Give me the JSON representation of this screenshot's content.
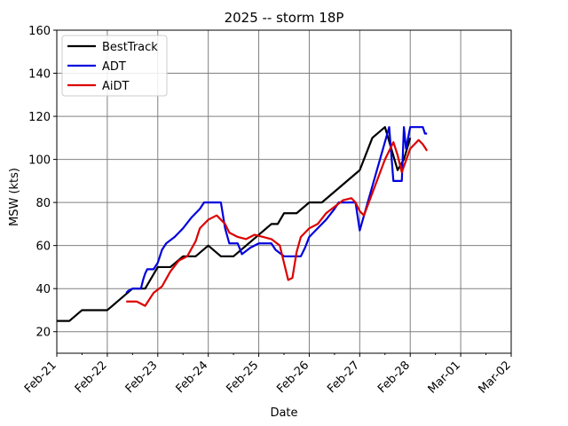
{
  "chart_data": {
    "type": "line",
    "title": "2025 -- storm 18P",
    "xlabel": "Date",
    "ylabel": "MSW (kts)",
    "xlim": [
      "2025-02-21",
      "2025-03-02"
    ],
    "ylim": [
      10,
      160
    ],
    "x_ticks": [
      "2025-02-21",
      "2025-02-22",
      "2025-02-23",
      "2025-02-24",
      "2025-02-25",
      "2025-02-26",
      "2025-02-27",
      "2025-02-28",
      "2025-03-01",
      "2025-03-02"
    ],
    "x_tick_labels": [
      "Feb-21",
      "Feb-22",
      "Feb-23",
      "Feb-24",
      "Feb-25",
      "Feb-26",
      "Feb-27",
      "Feb-28",
      "Mar-01",
      "Mar-02"
    ],
    "y_ticks": [
      20,
      40,
      60,
      80,
      100,
      120,
      140,
      160
    ],
    "grid": true,
    "legend_position": "top-left",
    "series": [
      {
        "name": "BestTrack",
        "color": "#000000",
        "points": [
          [
            "2025-02-21T00:00",
            25
          ],
          [
            "2025-02-21T06:00",
            25
          ],
          [
            "2025-02-21T12:00",
            30
          ],
          [
            "2025-02-21T18:00",
            30
          ],
          [
            "2025-02-22T00:00",
            30
          ],
          [
            "2025-02-22T06:00",
            35
          ],
          [
            "2025-02-22T12:00",
            40
          ],
          [
            "2025-02-22T18:00",
            40
          ],
          [
            "2025-02-23T00:00",
            50
          ],
          [
            "2025-02-23T06:00",
            50
          ],
          [
            "2025-02-23T12:00",
            55
          ],
          [
            "2025-02-23T18:00",
            55
          ],
          [
            "2025-02-24T00:00",
            60
          ],
          [
            "2025-02-24T06:00",
            55
          ],
          [
            "2025-02-24T12:00",
            55
          ],
          [
            "2025-02-24T18:00",
            60
          ],
          [
            "2025-02-25T00:00",
            65
          ],
          [
            "2025-02-25T06:00",
            70
          ],
          [
            "2025-02-25T09:00",
            70
          ],
          [
            "2025-02-25T12:00",
            75
          ],
          [
            "2025-02-25T18:00",
            75
          ],
          [
            "2025-02-26T00:00",
            80
          ],
          [
            "2025-02-26T06:00",
            80
          ],
          [
            "2025-02-26T12:00",
            85
          ],
          [
            "2025-02-26T18:00",
            90
          ],
          [
            "2025-02-27T00:00",
            95
          ],
          [
            "2025-02-27T06:00",
            110
          ],
          [
            "2025-02-27T12:00",
            115
          ],
          [
            "2025-02-27T15:00",
            105
          ],
          [
            "2025-02-27T18:00",
            95
          ],
          [
            "2025-02-27T21:00",
            100
          ],
          [
            "2025-02-28T00:00",
            110
          ]
        ]
      },
      {
        "name": "ADT",
        "color": "#0000dd",
        "points": [
          [
            "2025-02-22T09:00",
            38
          ],
          [
            "2025-02-22T10:00",
            39
          ],
          [
            "2025-02-22T12:00",
            40
          ],
          [
            "2025-02-22T16:00",
            40
          ],
          [
            "2025-02-22T17:00",
            44
          ],
          [
            "2025-02-22T18:00",
            47
          ],
          [
            "2025-02-22T19:00",
            49
          ],
          [
            "2025-02-22T22:00",
            49
          ],
          [
            "2025-02-23T00:00",
            52
          ],
          [
            "2025-02-23T02:00",
            58
          ],
          [
            "2025-02-23T04:00",
            61
          ],
          [
            "2025-02-23T08:00",
            64
          ],
          [
            "2025-02-23T12:00",
            68
          ],
          [
            "2025-02-23T16:00",
            73
          ],
          [
            "2025-02-23T20:00",
            77
          ],
          [
            "2025-02-23T22:00",
            80
          ],
          [
            "2025-02-24T06:00",
            80
          ],
          [
            "2025-02-24T08:00",
            68
          ],
          [
            "2025-02-24T10:00",
            61
          ],
          [
            "2025-02-24T14:00",
            61
          ],
          [
            "2025-02-24T16:00",
            56
          ],
          [
            "2025-02-24T20:00",
            59
          ],
          [
            "2025-02-25T00:00",
            61
          ],
          [
            "2025-02-25T06:00",
            61
          ],
          [
            "2025-02-25T08:00",
            58
          ],
          [
            "2025-02-25T12:00",
            55
          ],
          [
            "2025-02-25T20:00",
            55
          ],
          [
            "2025-02-25T22:00",
            59
          ],
          [
            "2025-02-26T00:00",
            64
          ],
          [
            "2025-02-26T04:00",
            68
          ],
          [
            "2025-02-26T08:00",
            72
          ],
          [
            "2025-02-26T12:00",
            77
          ],
          [
            "2025-02-26T14:00",
            80
          ],
          [
            "2025-02-26T22:00",
            80
          ],
          [
            "2025-02-27T00:00",
            67
          ],
          [
            "2025-02-27T14:00",
            115
          ],
          [
            "2025-02-27T16:00",
            90
          ],
          [
            "2025-02-27T20:00",
            90
          ],
          [
            "2025-02-27T21:00",
            115
          ],
          [
            "2025-02-27T22:00",
            105
          ],
          [
            "2025-02-28T00:00",
            115
          ],
          [
            "2025-02-28T06:00",
            115
          ],
          [
            "2025-02-28T07:00",
            112
          ],
          [
            "2025-02-28T08:00",
            112
          ]
        ]
      },
      {
        "name": "AiDT",
        "color": "#dd0000",
        "points": [
          [
            "2025-02-22T09:00",
            34
          ],
          [
            "2025-02-22T14:00",
            34
          ],
          [
            "2025-02-22T18:00",
            32
          ],
          [
            "2025-02-22T22:00",
            38
          ],
          [
            "2025-02-23T02:00",
            41
          ],
          [
            "2025-02-23T06:00",
            48
          ],
          [
            "2025-02-23T10:00",
            53
          ],
          [
            "2025-02-23T14:00",
            55
          ],
          [
            "2025-02-23T18:00",
            62
          ],
          [
            "2025-02-23T20:00",
            68
          ],
          [
            "2025-02-24T00:00",
            72
          ],
          [
            "2025-02-24T04:00",
            74
          ],
          [
            "2025-02-24T08:00",
            70
          ],
          [
            "2025-02-24T10:00",
            66
          ],
          [
            "2025-02-24T14:00",
            64
          ],
          [
            "2025-02-24T18:00",
            63
          ],
          [
            "2025-02-24T22:00",
            65
          ],
          [
            "2025-02-25T02:00",
            64
          ],
          [
            "2025-02-25T06:00",
            63
          ],
          [
            "2025-02-25T10:00",
            60
          ],
          [
            "2025-02-25T12:00",
            52
          ],
          [
            "2025-02-25T14:00",
            44
          ],
          [
            "2025-02-25T16:00",
            45
          ],
          [
            "2025-02-25T18:00",
            57
          ],
          [
            "2025-02-25T20:00",
            64
          ],
          [
            "2025-02-26T00:00",
            68
          ],
          [
            "2025-02-26T04:00",
            70
          ],
          [
            "2025-02-26T08:00",
            75
          ],
          [
            "2025-02-26T12:00",
            78
          ],
          [
            "2025-02-26T16:00",
            81
          ],
          [
            "2025-02-26T20:00",
            82
          ],
          [
            "2025-02-26T22:00",
            80
          ],
          [
            "2025-02-27T00:00",
            76
          ],
          [
            "2025-02-27T02:00",
            74
          ],
          [
            "2025-02-27T12:00",
            100
          ],
          [
            "2025-02-27T16:00",
            108
          ],
          [
            "2025-02-27T18:00",
            102
          ],
          [
            "2025-02-27T20:00",
            94
          ],
          [
            "2025-02-28T00:00",
            105
          ],
          [
            "2025-02-28T04:00",
            109
          ],
          [
            "2025-02-28T06:00",
            107
          ],
          [
            "2025-02-28T08:00",
            104
          ]
        ]
      }
    ]
  }
}
